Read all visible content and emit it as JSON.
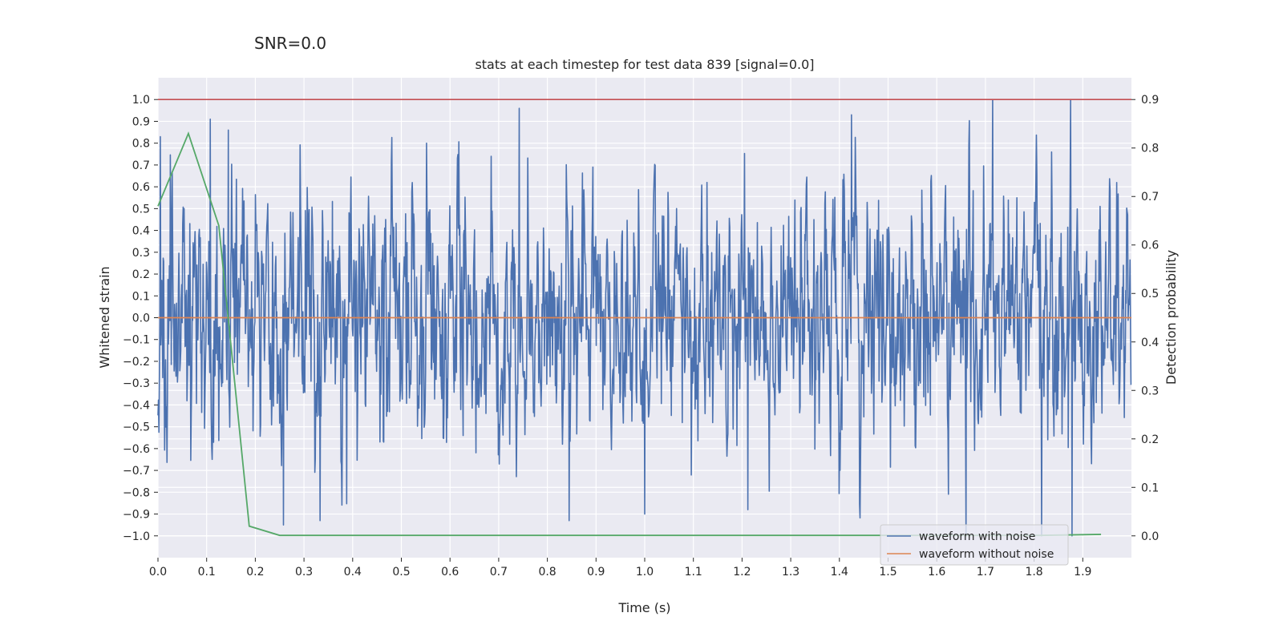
{
  "figure": {
    "suptitle": "SNR=0.0"
  },
  "chart_data": {
    "type": "line",
    "title": "stats at each timestep for test data 839 [signal=0.0]",
    "xlabel": "Time (s)",
    "ylabel": "Whitened strain",
    "y2label": "Detection probability",
    "xlim": [
      0.0,
      2.0
    ],
    "ylim": [
      -1.1,
      1.1
    ],
    "y2lim": [
      -0.045,
      0.945
    ],
    "x_ticks": [
      "0.0",
      "0.1",
      "0.2",
      "0.3",
      "0.4",
      "0.5",
      "0.6",
      "0.7",
      "0.8",
      "0.9",
      "1.0",
      "1.1",
      "1.2",
      "1.3",
      "1.4",
      "1.5",
      "1.6",
      "1.7",
      "1.8",
      "1.9"
    ],
    "y_ticks": [
      "1.0",
      "0.9",
      "0.8",
      "0.7",
      "0.6",
      "0.5",
      "0.4",
      "0.3",
      "0.2",
      "0.1",
      "0.0",
      "−0.1",
      "−0.2",
      "−0.3",
      "−0.4",
      "−0.5",
      "−0.6",
      "−0.7",
      "−0.8",
      "−0.9",
      "−1.0"
    ],
    "y2_ticks": [
      "0.9",
      "0.8",
      "0.7",
      "0.6",
      "0.5",
      "0.4",
      "0.3",
      "0.2",
      "0.1",
      "0.0"
    ],
    "grid": true,
    "legend_position": "lower-right",
    "series": [
      {
        "name": "waveform with noise",
        "color": "#4c72b0",
        "axis": "left",
        "kind": "noise",
        "n_points": 2048,
        "approx_range": [
          -1.0,
          1.0
        ],
        "notable_peaks": [
          {
            "x": 0.005,
            "y": 0.83
          },
          {
            "x": 0.107,
            "y": 0.91
          },
          {
            "x": 0.145,
            "y": 0.86
          },
          {
            "x": 0.258,
            "y": -0.95
          },
          {
            "x": 0.333,
            "y": -0.93
          },
          {
            "x": 0.552,
            "y": 0.8
          },
          {
            "x": 0.742,
            "y": 0.96
          },
          {
            "x": 0.845,
            "y": -0.93
          },
          {
            "x": 1.0,
            "y": -0.9
          },
          {
            "x": 1.212,
            "y": -0.88
          },
          {
            "x": 1.425,
            "y": 0.93
          },
          {
            "x": 1.66,
            "y": -1.0
          },
          {
            "x": 1.715,
            "y": 1.0
          },
          {
            "x": 1.815,
            "y": -1.0
          },
          {
            "x": 1.875,
            "y": 1.0
          },
          {
            "x": 1.878,
            "y": -1.0
          }
        ]
      },
      {
        "name": "waveform without noise",
        "color": "#dd8452",
        "axis": "left",
        "x": [
          0.0,
          2.0
        ],
        "y": [
          0.0,
          0.0
        ]
      },
      {
        "color": "#55a868",
        "axis": "right",
        "x": [
          0.0,
          0.0625,
          0.125,
          0.1875,
          0.25,
          0.3125,
          0.375,
          0.4375,
          0.5,
          0.5625,
          0.625,
          0.6875,
          0.75,
          0.8125,
          0.875,
          0.9375,
          1.0,
          1.0625,
          1.125,
          1.1875,
          1.25,
          1.3125,
          1.375,
          1.4375,
          1.5,
          1.5625,
          1.625,
          1.6875,
          1.75,
          1.8125,
          1.875,
          1.9375
        ],
        "y": [
          0.68,
          0.83,
          0.64,
          0.02,
          0.001,
          0.001,
          0.001,
          0.001,
          0.001,
          0.001,
          0.001,
          0.001,
          0.001,
          0.001,
          0.001,
          0.001,
          0.001,
          0.001,
          0.001,
          0.001,
          0.001,
          0.001,
          0.001,
          0.001,
          0.001,
          0.001,
          0.001,
          0.001,
          0.001,
          0.001,
          0.002,
          0.003
        ]
      },
      {
        "color": "#c44e52",
        "axis": "right",
        "x": [
          0.0,
          2.0
        ],
        "y": [
          0.9,
          0.9
        ]
      }
    ]
  }
}
